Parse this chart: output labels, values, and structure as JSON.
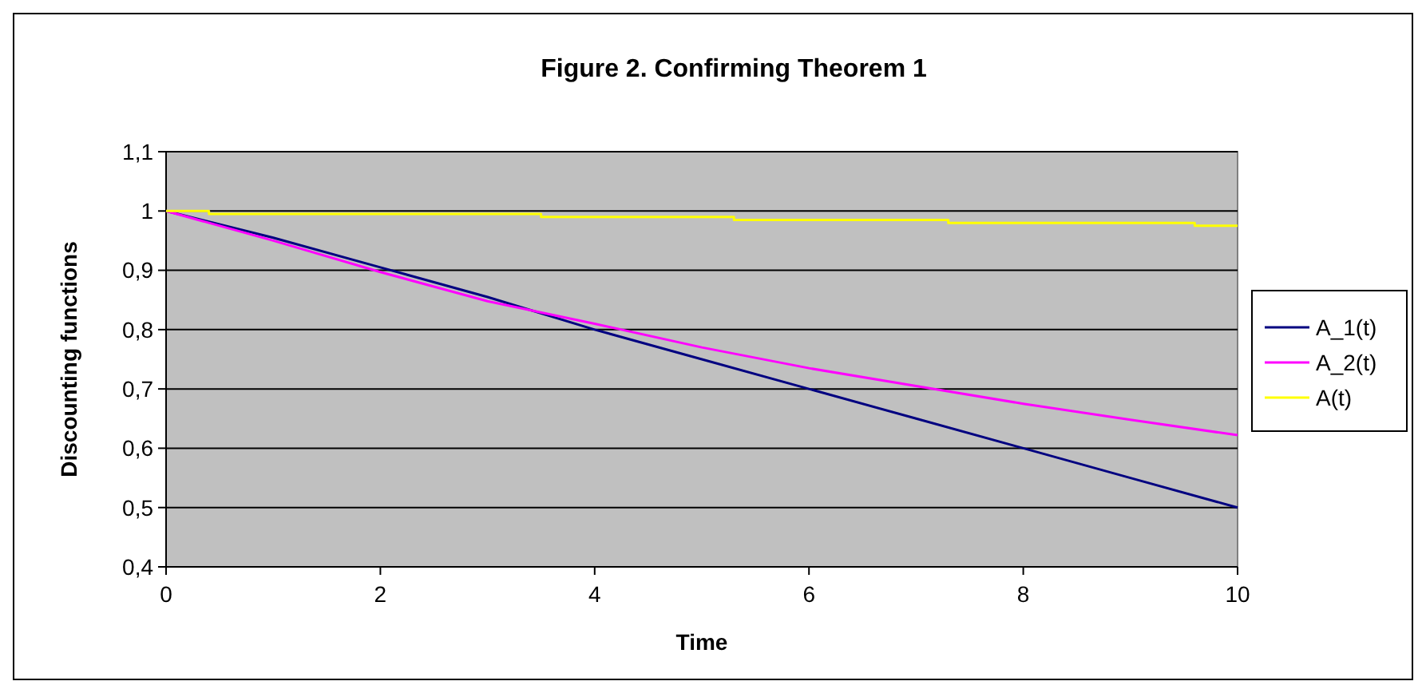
{
  "chart_data": {
    "type": "line",
    "title": "Figure 2. Confirming Theorem 1",
    "xlabel": "Time",
    "ylabel": "Discounting functions",
    "xlim": [
      0,
      10
    ],
    "xticks": [
      0,
      2,
      4,
      6,
      8,
      10
    ],
    "ylim": [
      0.4,
      1.1
    ],
    "yticks": [
      {
        "value": 0.4,
        "label": "0,4"
      },
      {
        "value": 0.5,
        "label": "0,5"
      },
      {
        "value": 0.6,
        "label": "0,6"
      },
      {
        "value": 0.7,
        "label": "0,7"
      },
      {
        "value": 0.8,
        "label": "0,8"
      },
      {
        "value": 0.9,
        "label": "0,9"
      },
      {
        "value": 1,
        "label": "1"
      },
      {
        "value": 1.1,
        "label": "1,1"
      }
    ],
    "grid": "y",
    "legend": "right",
    "marker": "none",
    "line_style": "solid",
    "series": [
      {
        "name": "A_1(t)",
        "color": "#000080",
        "x": [
          0,
          1,
          2,
          3,
          4,
          5,
          6,
          7,
          8,
          9,
          10
        ],
        "values": [
          1,
          0.955,
          0.905,
          0.855,
          0.8,
          0.75,
          0.7,
          0.65,
          0.6,
          0.55,
          0.5
        ]
      },
      {
        "name": "A_2(t)",
        "color": "#ff00ff",
        "x": [
          0,
          1,
          2,
          3,
          4,
          5,
          6,
          7,
          8,
          9,
          10
        ],
        "values": [
          1,
          0.95,
          0.897,
          0.848,
          0.81,
          0.77,
          0.735,
          0.705,
          0.675,
          0.648,
          0.622
        ]
      },
      {
        "name": "A(t)",
        "color": "#ffff00",
        "x": [
          0,
          0.4,
          0.4,
          3.5,
          3.5,
          5.3,
          5.3,
          7.3,
          7.3,
          9.6,
          9.6,
          10
        ],
        "values": [
          1,
          1,
          0.995,
          0.995,
          0.99,
          0.99,
          0.985,
          0.985,
          0.98,
          0.98,
          0.975,
          0.975
        ]
      }
    ]
  }
}
